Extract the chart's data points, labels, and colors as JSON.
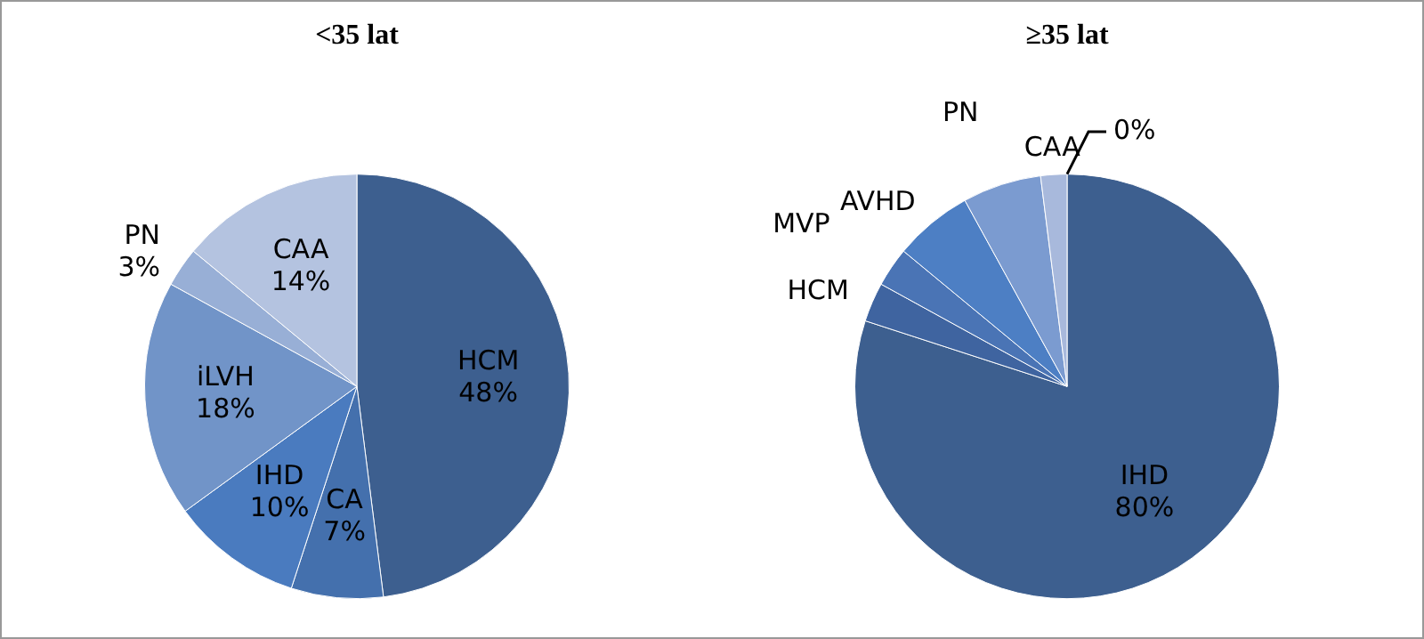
{
  "chart_data": [
    {
      "type": "pie",
      "title": "<35 lat",
      "categories": [
        "HCM",
        "CA",
        "IHD",
        "iLVH",
        "PN",
        "CAA"
      ],
      "values": [
        48,
        7,
        10,
        18,
        3,
        14
      ],
      "colors": [
        "#3d5f8f",
        "#4470ad",
        "#4a7bbf",
        "#7194c8",
        "#98afd6",
        "#b4c3e0"
      ],
      "value_labels": [
        "48%",
        "7%",
        "10%",
        "18%",
        "3%",
        "14%"
      ],
      "legend": false
    },
    {
      "type": "pie",
      "title": "≥35 lat",
      "categories": [
        "IHD",
        "HCM",
        "MVP",
        "AVHD",
        "PN",
        "CAA",
        null
      ],
      "values": [
        80,
        3,
        3,
        6,
        6,
        2,
        0
      ],
      "colors": [
        "#3d5f8f",
        "#3f64a0",
        "#4a74b5",
        "#4d7fc4",
        "#7b9bd0",
        "#a8b9dc",
        "#c8d3ea"
      ],
      "value_labels": [
        "80%",
        null,
        null,
        null,
        null,
        null,
        "0%"
      ],
      "legend": false
    }
  ]
}
